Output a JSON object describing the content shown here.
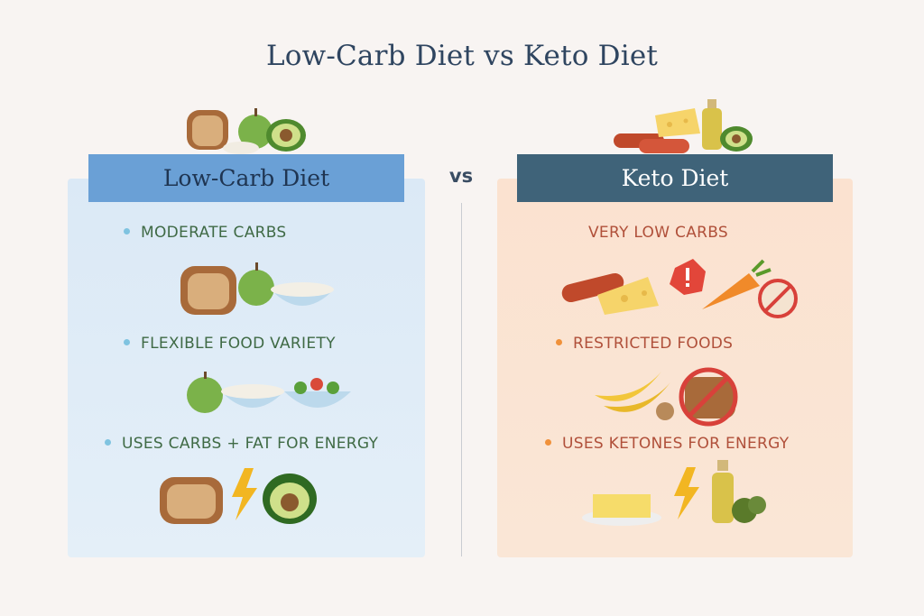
{
  "title": "Low-Carb Diet vs Keto Diet",
  "vs_label": "vs",
  "left": {
    "header": "Low-Carb Diet",
    "items": [
      "MODERATE CARBS",
      "FLEXIBLE FOOD VARIETY",
      "USES CARBS + FAT FOR ENERGY"
    ]
  },
  "right": {
    "header": "Keto Diet",
    "items": [
      "VERY LOW CARBS",
      "RESTRICTED FOODS",
      "USES KETONES FOR ENERGY"
    ]
  },
  "colors": {
    "left_header": "#6aa0d6",
    "right_header": "#3f6379",
    "left_text": "#3f6a45",
    "right_text": "#b0503a",
    "left_bullet": "#7fc3e0",
    "right_bullet": "#f0913a"
  },
  "icons": {
    "left_top": [
      "bread-icon",
      "apple-icon",
      "rice-icon",
      "avocado-icon"
    ],
    "right_top": [
      "sausage-icon",
      "cheese-icon",
      "oil-bottle-icon",
      "avocado-icon"
    ]
  }
}
